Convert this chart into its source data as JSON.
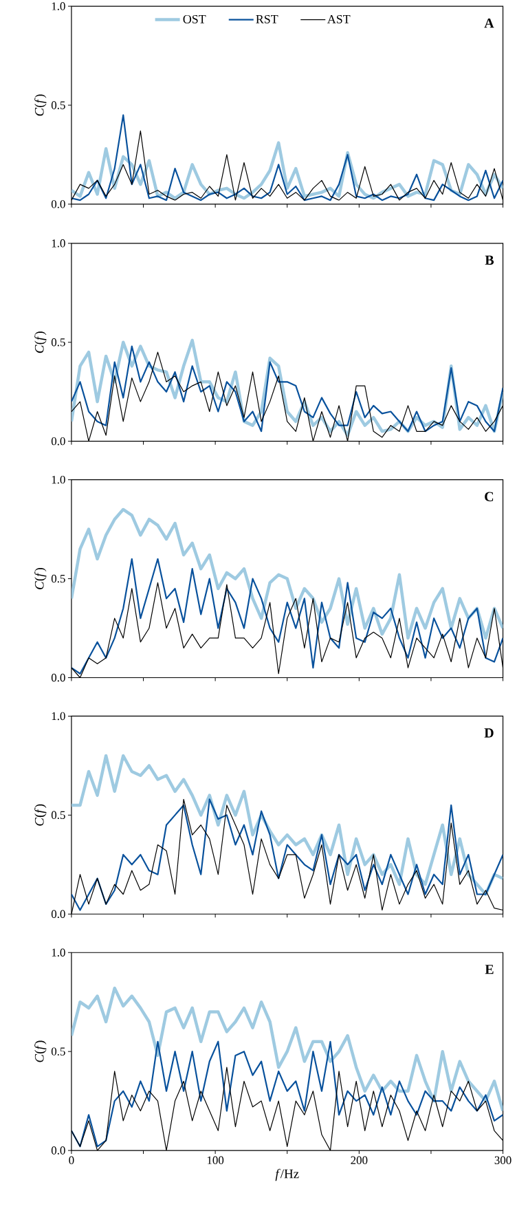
{
  "chart_data": [
    {
      "type": "line",
      "annotations": [
        "A"
      ],
      "ylabel": "*C*(*f*)",
      "tick_labels": "y",
      "legend": "top",
      "xlim": [
        0,
        300
      ],
      "ylim": [
        0,
        1
      ],
      "xticks": [
        0,
        {
          "value": 50,
          "label": null
        },
        100,
        {
          "value": 150,
          "label": null
        },
        200,
        {
          "value": 250,
          "label": null
        },
        300
      ],
      "yticks": [
        {
          "value": 0,
          "label": "0.0"
        },
        {
          "value": 0.5,
          "label": "0.5"
        },
        {
          "value": 1,
          "label": "1.0"
        }
      ],
      "x": [
        0,
        6,
        12,
        18,
        24,
        30,
        36,
        42,
        48,
        54,
        60,
        66,
        72,
        78,
        84,
        90,
        96,
        102,
        108,
        114,
        120,
        126,
        132,
        138,
        144,
        150,
        156,
        162,
        168,
        174,
        180,
        186,
        192,
        198,
        204,
        210,
        216,
        222,
        228,
        234,
        240,
        246,
        252,
        258,
        264,
        270,
        276,
        282,
        288,
        294,
        300
      ],
      "series": [
        {
          "name": "OST",
          "color": "#9ecae1",
          "values": [
            0.07,
            0.04,
            0.16,
            0.05,
            0.28,
            0.08,
            0.24,
            0.2,
            0.1,
            0.22,
            0.04,
            0.06,
            0.03,
            0.06,
            0.2,
            0.1,
            0.05,
            0.07,
            0.08,
            0.05,
            0.03,
            0.06,
            0.1,
            0.17,
            0.31,
            0.08,
            0.18,
            0.04,
            0.05,
            0.06,
            0.08,
            0.04,
            0.26,
            0.1,
            0.05,
            0.03,
            0.06,
            0.08,
            0.1,
            0.04,
            0.06,
            0.05,
            0.22,
            0.2,
            0.07,
            0.05,
            0.2,
            0.15,
            0.05,
            0.15,
            0.08
          ]
        },
        {
          "name": "RST",
          "color": "#08519c",
          "values": [
            0.03,
            0.02,
            0.05,
            0.12,
            0.03,
            0.18,
            0.45,
            0.1,
            0.2,
            0.03,
            0.04,
            0.02,
            0.18,
            0.06,
            0.04,
            0.02,
            0.05,
            0.06,
            0.03,
            0.05,
            0.08,
            0.04,
            0.03,
            0.06,
            0.2,
            0.05,
            0.09,
            0.02,
            0.03,
            0.04,
            0.02,
            0.1,
            0.25,
            0.04,
            0.03,
            0.05,
            0.02,
            0.04,
            0.03,
            0.05,
            0.15,
            0.03,
            0.02,
            0.1,
            0.07,
            0.04,
            0.02,
            0.04,
            0.17,
            0.03,
            0.12
          ]
        },
        {
          "name": "AST",
          "color": "#000000",
          "values": [
            0.02,
            0.1,
            0.08,
            0.12,
            0.04,
            0.1,
            0.2,
            0.1,
            0.37,
            0.05,
            0.07,
            0.04,
            0.02,
            0.05,
            0.06,
            0.03,
            0.09,
            0.04,
            0.25,
            0.02,
            0.21,
            0.03,
            0.08,
            0.04,
            0.1,
            0.03,
            0.06,
            0.02,
            0.08,
            0.12,
            0.04,
            0.02,
            0.06,
            0.03,
            0.19,
            0.04,
            0.05,
            0.1,
            0.02,
            0.06,
            0.08,
            0.03,
            0.12,
            0.05,
            0.21,
            0.06,
            0.03,
            0.1,
            0.04,
            0.18,
            0.02
          ]
        }
      ]
    },
    {
      "type": "line",
      "annotations": [
        "B"
      ],
      "ylabel": "*C*(*f*)",
      "tick_labels": "y",
      "xlim": [
        0,
        300
      ],
      "ylim": [
        0,
        1
      ],
      "xticks": [
        0,
        {
          "value": 50,
          "label": null
        },
        100,
        {
          "value": 150,
          "label": null
        },
        200,
        {
          "value": 250,
          "label": null
        },
        300
      ],
      "yticks": [
        {
          "value": 0,
          "label": "0.0"
        },
        {
          "value": 0.5,
          "label": "0.5"
        },
        {
          "value": 1,
          "label": "1.0"
        }
      ],
      "x": [
        0,
        6,
        12,
        18,
        24,
        30,
        36,
        42,
        48,
        54,
        60,
        66,
        72,
        78,
        84,
        90,
        96,
        102,
        108,
        114,
        120,
        126,
        132,
        138,
        144,
        150,
        156,
        162,
        168,
        174,
        180,
        186,
        192,
        198,
        204,
        210,
        216,
        222,
        228,
        234,
        240,
        246,
        252,
        258,
        264,
        270,
        276,
        282,
        288,
        294,
        300
      ],
      "series": [
        {
          "color": "#9ecae1",
          "values": [
            0.1,
            0.38,
            0.45,
            0.2,
            0.43,
            0.3,
            0.5,
            0.38,
            0.48,
            0.38,
            0.36,
            0.35,
            0.22,
            0.38,
            0.51,
            0.3,
            0.3,
            0.22,
            0.2,
            0.35,
            0.1,
            0.08,
            0.15,
            0.42,
            0.38,
            0.15,
            0.1,
            0.2,
            0.08,
            0.12,
            0.05,
            0.1,
            0.03,
            0.15,
            0.08,
            0.12,
            0.05,
            0.06,
            0.1,
            0.05,
            0.12,
            0.08,
            0.1,
            0.07,
            0.38,
            0.06,
            0.12,
            0.08,
            0.18,
            0.05,
            0.25
          ]
        },
        {
          "color": "#08519c",
          "values": [
            0.2,
            0.3,
            0.15,
            0.1,
            0.08,
            0.4,
            0.22,
            0.48,
            0.3,
            0.4,
            0.3,
            0.25,
            0.35,
            0.2,
            0.38,
            0.25,
            0.28,
            0.15,
            0.3,
            0.25,
            0.1,
            0.15,
            0.05,
            0.4,
            0.3,
            0.3,
            0.28,
            0.15,
            0.12,
            0.22,
            0.14,
            0.08,
            0.08,
            0.25,
            0.12,
            0.18,
            0.14,
            0.15,
            0.1,
            0.05,
            0.15,
            0.05,
            0.08,
            0.1,
            0.37,
            0.1,
            0.2,
            0.18,
            0.1,
            0.05,
            0.27
          ]
        },
        {
          "color": "#000000",
          "values": [
            0.15,
            0.2,
            0.0,
            0.15,
            0.03,
            0.33,
            0.1,
            0.32,
            0.2,
            0.3,
            0.45,
            0.3,
            0.33,
            0.25,
            0.28,
            0.3,
            0.15,
            0.35,
            0.18,
            0.28,
            0.12,
            0.35,
            0.1,
            0.2,
            0.33,
            0.1,
            0.05,
            0.22,
            0.0,
            0.15,
            0.02,
            0.18,
            0.0,
            0.28,
            0.28,
            0.05,
            0.02,
            0.08,
            0.05,
            0.18,
            0.05,
            0.05,
            0.1,
            0.08,
            0.18,
            0.1,
            0.06,
            0.12,
            0.05,
            0.1,
            0.18
          ]
        }
      ]
    },
    {
      "type": "line",
      "annotations": [
        "C"
      ],
      "ylabel": "*C*(*f*)",
      "tick_labels": "y",
      "xlim": [
        0,
        300
      ],
      "ylim": [
        0,
        1
      ],
      "xticks": [
        0,
        {
          "value": 50,
          "label": null
        },
        100,
        {
          "value": 150,
          "label": null
        },
        200,
        {
          "value": 250,
          "label": null
        },
        300
      ],
      "yticks": [
        {
          "value": 0,
          "label": "0.0"
        },
        {
          "value": 0.5,
          "label": "0.5"
        },
        {
          "value": 1,
          "label": "1.0"
        }
      ],
      "x": [
        0,
        6,
        12,
        18,
        24,
        30,
        36,
        42,
        48,
        54,
        60,
        66,
        72,
        78,
        84,
        90,
        96,
        102,
        108,
        114,
        120,
        126,
        132,
        138,
        144,
        150,
        156,
        162,
        168,
        174,
        180,
        186,
        192,
        198,
        204,
        210,
        216,
        222,
        228,
        234,
        240,
        246,
        252,
        258,
        264,
        270,
        276,
        282,
        288,
        294,
        300
      ],
      "series": [
        {
          "color": "#9ecae1",
          "values": [
            0.4,
            0.65,
            0.75,
            0.6,
            0.72,
            0.8,
            0.85,
            0.82,
            0.72,
            0.8,
            0.77,
            0.7,
            0.78,
            0.62,
            0.68,
            0.55,
            0.62,
            0.45,
            0.53,
            0.5,
            0.55,
            0.4,
            0.3,
            0.48,
            0.52,
            0.5,
            0.35,
            0.45,
            0.4,
            0.28,
            0.35,
            0.5,
            0.27,
            0.45,
            0.25,
            0.35,
            0.22,
            0.3,
            0.52,
            0.2,
            0.35,
            0.25,
            0.38,
            0.45,
            0.25,
            0.4,
            0.3,
            0.35,
            0.2,
            0.35,
            0.25
          ]
        },
        {
          "color": "#08519c",
          "values": [
            0.05,
            0.02,
            0.1,
            0.18,
            0.1,
            0.2,
            0.35,
            0.6,
            0.3,
            0.45,
            0.6,
            0.4,
            0.45,
            0.28,
            0.55,
            0.32,
            0.5,
            0.25,
            0.45,
            0.38,
            0.25,
            0.5,
            0.4,
            0.25,
            0.18,
            0.38,
            0.25,
            0.4,
            0.05,
            0.38,
            0.2,
            0.15,
            0.48,
            0.2,
            0.18,
            0.33,
            0.3,
            0.35,
            0.2,
            0.1,
            0.28,
            0.1,
            0.3,
            0.2,
            0.25,
            0.15,
            0.3,
            0.35,
            0.1,
            0.08,
            0.2
          ]
        },
        {
          "color": "#000000",
          "values": [
            0.05,
            0.0,
            0.1,
            0.07,
            0.1,
            0.3,
            0.2,
            0.45,
            0.18,
            0.25,
            0.48,
            0.25,
            0.35,
            0.15,
            0.22,
            0.15,
            0.2,
            0.2,
            0.47,
            0.2,
            0.2,
            0.15,
            0.2,
            0.38,
            0.02,
            0.3,
            0.4,
            0.15,
            0.4,
            0.08,
            0.2,
            0.18,
            0.38,
            0.1,
            0.2,
            0.23,
            0.2,
            0.1,
            0.3,
            0.05,
            0.2,
            0.15,
            0.1,
            0.22,
            0.08,
            0.3,
            0.05,
            0.2,
            0.1,
            0.35,
            0.05
          ]
        }
      ]
    },
    {
      "type": "line",
      "annotations": [
        "D"
      ],
      "ylabel": "*C*(*f*)",
      "tick_labels": "y",
      "xlim": [
        0,
        300
      ],
      "ylim": [
        0,
        1
      ],
      "xticks": [
        0,
        {
          "value": 50,
          "label": null
        },
        100,
        {
          "value": 150,
          "label": null
        },
        200,
        {
          "value": 250,
          "label": null
        },
        300
      ],
      "yticks": [
        {
          "value": 0,
          "label": "0.0"
        },
        {
          "value": 0.5,
          "label": "0.5"
        },
        {
          "value": 1,
          "label": "1.0"
        }
      ],
      "x": [
        0,
        6,
        12,
        18,
        24,
        30,
        36,
        42,
        48,
        54,
        60,
        66,
        72,
        78,
        84,
        90,
        96,
        102,
        108,
        114,
        120,
        126,
        132,
        138,
        144,
        150,
        156,
        162,
        168,
        174,
        180,
        186,
        192,
        198,
        204,
        210,
        216,
        222,
        228,
        234,
        240,
        246,
        252,
        258,
        264,
        270,
        276,
        282,
        288,
        294,
        300
      ],
      "series": [
        {
          "color": "#9ecae1",
          "values": [
            0.55,
            0.55,
            0.72,
            0.6,
            0.8,
            0.62,
            0.8,
            0.72,
            0.7,
            0.75,
            0.68,
            0.7,
            0.62,
            0.68,
            0.6,
            0.5,
            0.6,
            0.45,
            0.6,
            0.5,
            0.62,
            0.4,
            0.5,
            0.42,
            0.35,
            0.4,
            0.35,
            0.38,
            0.3,
            0.4,
            0.3,
            0.45,
            0.2,
            0.38,
            0.25,
            0.3,
            0.2,
            0.25,
            0.15,
            0.38,
            0.2,
            0.15,
            0.3,
            0.45,
            0.2,
            0.38,
            0.2,
            0.15,
            0.1,
            0.2,
            0.18
          ]
        },
        {
          "color": "#08519c",
          "values": [
            0.1,
            0.02,
            0.1,
            0.18,
            0.05,
            0.12,
            0.3,
            0.25,
            0.3,
            0.22,
            0.2,
            0.45,
            0.5,
            0.55,
            0.35,
            0.2,
            0.58,
            0.48,
            0.5,
            0.35,
            0.45,
            0.3,
            0.52,
            0.4,
            0.18,
            0.35,
            0.3,
            0.25,
            0.22,
            0.4,
            0.15,
            0.3,
            0.25,
            0.3,
            0.12,
            0.25,
            0.15,
            0.3,
            0.2,
            0.1,
            0.25,
            0.1,
            0.2,
            0.15,
            0.55,
            0.2,
            0.3,
            0.1,
            0.1,
            0.2,
            0.3
          ]
        },
        {
          "color": "#000000",
          "values": [
            0.0,
            0.2,
            0.05,
            0.18,
            0.05,
            0.15,
            0.1,
            0.22,
            0.12,
            0.15,
            0.35,
            0.32,
            0.1,
            0.58,
            0.4,
            0.45,
            0.38,
            0.2,
            0.55,
            0.45,
            0.35,
            0.1,
            0.38,
            0.25,
            0.18,
            0.3,
            0.3,
            0.08,
            0.2,
            0.35,
            0.05,
            0.3,
            0.12,
            0.25,
            0.08,
            0.3,
            0.02,
            0.2,
            0.05,
            0.15,
            0.22,
            0.08,
            0.15,
            0.05,
            0.46,
            0.15,
            0.22,
            0.05,
            0.12,
            0.03,
            0.02
          ]
        }
      ]
    },
    {
      "type": "line",
      "annotations": [
        "E"
      ],
      "ylabel": "*C*(*f*)",
      "xlabel": "*f*/Hz",
      "xlim": [
        0,
        300
      ],
      "ylim": [
        0,
        1
      ],
      "xticks": [
        0,
        {
          "value": 50,
          "label": null
        },
        100,
        {
          "value": 150,
          "label": null
        },
        200,
        {
          "value": 250,
          "label": null
        },
        300
      ],
      "yticks": [
        {
          "value": 0,
          "label": "0.0"
        },
        {
          "value": 0.5,
          "label": "0.5"
        },
        {
          "value": 1,
          "label": "1.0"
        }
      ],
      "x": [
        0,
        6,
        12,
        18,
        24,
        30,
        36,
        42,
        48,
        54,
        60,
        66,
        72,
        78,
        84,
        90,
        96,
        102,
        108,
        114,
        120,
        126,
        132,
        138,
        144,
        150,
        156,
        162,
        168,
        174,
        180,
        186,
        192,
        198,
        204,
        210,
        216,
        222,
        228,
        234,
        240,
        246,
        252,
        258,
        264,
        270,
        276,
        282,
        288,
        294,
        300
      ],
      "series": [
        {
          "color": "#9ecae1",
          "values": [
            0.58,
            0.75,
            0.72,
            0.78,
            0.65,
            0.82,
            0.73,
            0.78,
            0.72,
            0.65,
            0.48,
            0.7,
            0.72,
            0.62,
            0.72,
            0.55,
            0.7,
            0.7,
            0.6,
            0.65,
            0.72,
            0.62,
            0.75,
            0.65,
            0.42,
            0.5,
            0.62,
            0.45,
            0.55,
            0.55,
            0.45,
            0.5,
            0.58,
            0.42,
            0.3,
            0.38,
            0.3,
            0.35,
            0.3,
            0.3,
            0.48,
            0.35,
            0.25,
            0.5,
            0.3,
            0.45,
            0.35,
            0.3,
            0.25,
            0.35,
            0.2
          ]
        },
        {
          "color": "#08519c",
          "values": [
            0.1,
            0.02,
            0.18,
            0.02,
            0.05,
            0.25,
            0.3,
            0.22,
            0.35,
            0.25,
            0.55,
            0.3,
            0.5,
            0.3,
            0.5,
            0.25,
            0.45,
            0.55,
            0.2,
            0.48,
            0.5,
            0.38,
            0.45,
            0.25,
            0.4,
            0.3,
            0.35,
            0.2,
            0.5,
            0.3,
            0.55,
            0.18,
            0.3,
            0.25,
            0.28,
            0.18,
            0.32,
            0.18,
            0.35,
            0.25,
            0.18,
            0.3,
            0.25,
            0.25,
            0.2,
            0.32,
            0.25,
            0.2,
            0.28,
            0.15,
            0.18
          ]
        },
        {
          "color": "#000000",
          "values": [
            0.1,
            0.02,
            0.15,
            0.0,
            0.05,
            0.4,
            0.15,
            0.28,
            0.2,
            0.3,
            0.25,
            0.0,
            0.25,
            0.35,
            0.15,
            0.3,
            0.2,
            0.1,
            0.42,
            0.12,
            0.35,
            0.22,
            0.25,
            0.1,
            0.25,
            0.02,
            0.25,
            0.18,
            0.3,
            0.08,
            0.0,
            0.4,
            0.12,
            0.35,
            0.1,
            0.3,
            0.12,
            0.28,
            0.2,
            0.05,
            0.2,
            0.1,
            0.28,
            0.12,
            0.3,
            0.25,
            0.35,
            0.2,
            0.25,
            0.1,
            0.05
          ]
        }
      ]
    }
  ]
}
